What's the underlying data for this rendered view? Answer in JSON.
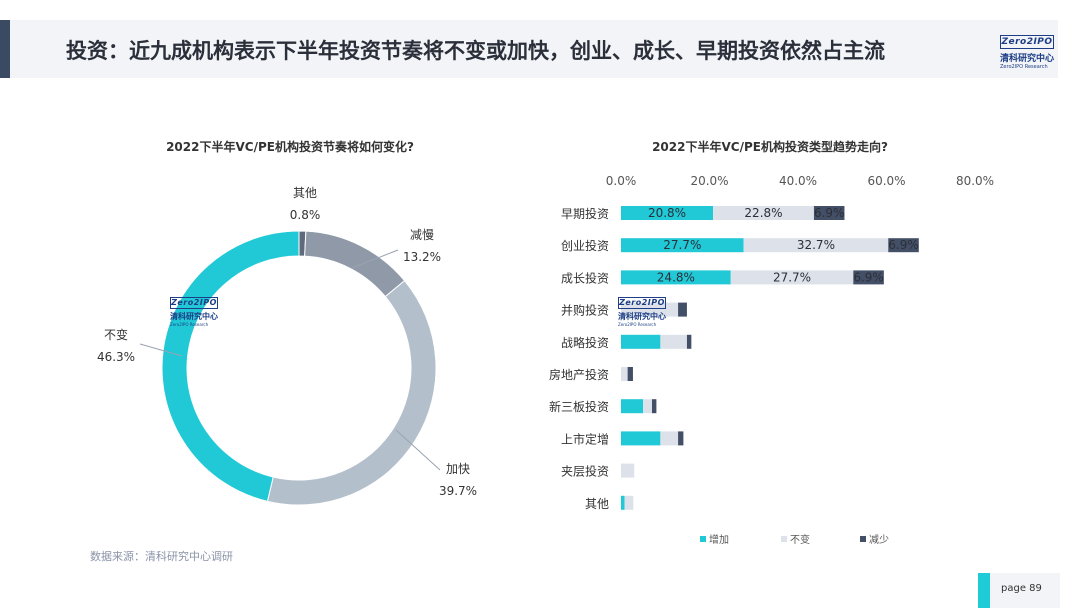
{
  "header": {
    "title": "投资：近九成机构表示下半年投资节奏将不变或加快，创业、成长、早期投资依然占主流"
  },
  "logo": {
    "brand": "Zero2IPO",
    "cn": "清科研究中心",
    "en": "Zero2IPO Research"
  },
  "footer": {
    "source": "数据来源：清科研究中心调研",
    "page_label": "page  89"
  },
  "colors": {
    "teal": "#21c9d6",
    "light_gray": "#dde2ea",
    "dark_navy": "#434f66",
    "gray_medium": "#8f99a8",
    "gray_light": "#b4bfcc"
  },
  "chart_data": [
    {
      "type": "pie",
      "variant": "donut",
      "title": "2022下半年VC/PE机构投资节奏将如何变化?",
      "slices": [
        {
          "label": "其他",
          "value": 0.8,
          "value_label": "0.8%",
          "color": "#5f6b7d"
        },
        {
          "label": "减慢",
          "value": 13.2,
          "value_label": "13.2%",
          "color": "#8f99a8"
        },
        {
          "label": "加快",
          "value": 39.7,
          "value_label": "39.7%",
          "color": "#b4bfcc"
        },
        {
          "label": "不变",
          "value": 46.3,
          "value_label": "46.3%",
          "color": "#21c9d6"
        }
      ]
    },
    {
      "type": "bar",
      "orientation": "horizontal",
      "stacked": true,
      "title": "2022下半年VC/PE机构投资类型趋势走向?",
      "categories": [
        "早期投资",
        "创业投资",
        "成长投资",
        "并购投资",
        "战略投资",
        "房地产投资",
        "新三板投资",
        "上市定增",
        "夹层投资",
        "其他"
      ],
      "series": [
        {
          "name": "增加",
          "color": "#21c9d6",
          "values": [
            20.8,
            27.7,
            24.8,
            0,
            8.9,
            0,
            5.0,
            8.9,
            0,
            0.8
          ]
        },
        {
          "name": "不变",
          "color": "#dde2ea",
          "values": [
            22.8,
            32.7,
            27.7,
            12.9,
            6.0,
            1.5,
            2.0,
            4.0,
            3.0,
            2.0
          ]
        },
        {
          "name": "减少",
          "color": "#434f66",
          "values": [
            6.9,
            6.9,
            6.9,
            2.0,
            1.0,
            1.2,
            1.0,
            1.2,
            0,
            0
          ]
        }
      ],
      "value_labels": [
        [
          "20.8%",
          "22.8%",
          "6.9%"
        ],
        [
          "27.7%",
          "32.7%",
          "6.9%"
        ],
        [
          "24.8%",
          "27.7%",
          "6.9%"
        ]
      ],
      "xlim": [
        0,
        80
      ],
      "xticks": [
        "0.0%",
        "20.0%",
        "40.0%",
        "60.0%",
        "80.0%"
      ],
      "legend": "bottom"
    }
  ]
}
